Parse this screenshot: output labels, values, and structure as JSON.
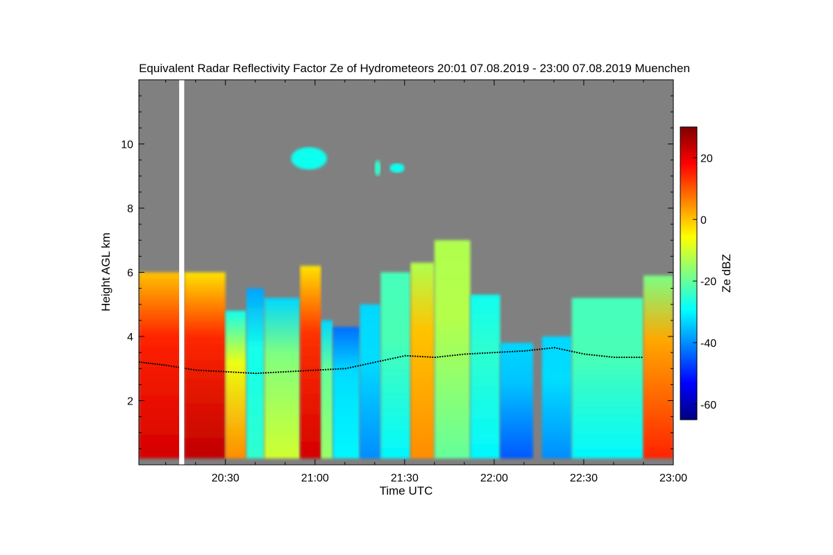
{
  "chart_data": {
    "type": "heatmap",
    "title": "Equivalent Radar Reflectivity Factor Ze of Hydrometeors   20:01 07.08.2019 - 23:00 07.08.2019 Muenchen",
    "xlabel": "Time UTC",
    "ylabel": "Height AGL km",
    "x_range_minutes_utc": [
      1201,
      1380
    ],
    "x_ticks": [
      {
        "value": 1230,
        "label": "20:30"
      },
      {
        "value": 1260,
        "label": "21:00"
      },
      {
        "value": 1290,
        "label": "21:30"
      },
      {
        "value": 1320,
        "label": "22:00"
      },
      {
        "value": 1350,
        "label": "22:30"
      },
      {
        "value": 1380,
        "label": "23:00"
      }
    ],
    "ylim": [
      0,
      12
    ],
    "y_ticks": [
      2,
      4,
      6,
      8,
      10
    ],
    "grid": false,
    "background_color": "#808080",
    "colorbar": {
      "label": "Ze dBZ",
      "range": [
        -65,
        30
      ],
      "ticks": [
        -60,
        -40,
        -20,
        0,
        20
      ],
      "colors": [
        "#00007f",
        "#0000ff",
        "#0080ff",
        "#00ffff",
        "#80ff80",
        "#ffff00",
        "#ff8000",
        "#ff0000",
        "#7f0000"
      ]
    },
    "data_gap": {
      "start": 1214.5,
      "end": 1216.2
    },
    "echo_columns": [
      {
        "t0": 1201,
        "t1": 1216,
        "top": 6.0,
        "dbz_low": 22,
        "dbz_high": 8
      },
      {
        "t0": 1216.2,
        "t1": 1230,
        "top": 6.0,
        "dbz_low": 24,
        "dbz_high": 5
      },
      {
        "t0": 1230,
        "t1": 1237,
        "top": 4.8,
        "dbz_low": 5,
        "dbz_high": -20
      },
      {
        "t0": 1237,
        "t1": 1243,
        "top": 5.5,
        "dbz_low": -25,
        "dbz_high": -30
      },
      {
        "t0": 1243,
        "t1": 1255,
        "top": 5.2,
        "dbz_low": -10,
        "dbz_high": -25
      },
      {
        "t0": 1255,
        "t1": 1262,
        "top": 6.2,
        "dbz_low": 22,
        "dbz_high": 5
      },
      {
        "t0": 1262,
        "t1": 1266,
        "top": 4.5,
        "dbz_low": -15,
        "dbz_high": -25
      },
      {
        "t0": 1266,
        "t1": 1275,
        "top": 4.3,
        "dbz_low": -30,
        "dbz_high": -35
      },
      {
        "t0": 1275,
        "t1": 1282,
        "top": 5.0,
        "dbz_low": -40,
        "dbz_high": -25
      },
      {
        "t0": 1282,
        "t1": 1292,
        "top": 6.0,
        "dbz_low": -30,
        "dbz_high": -15
      },
      {
        "t0": 1292,
        "t1": 1300,
        "top": 6.3,
        "dbz_low": 5,
        "dbz_high": -5
      },
      {
        "t0": 1300,
        "t1": 1312,
        "top": 7.0,
        "dbz_low": -20,
        "dbz_high": -5
      },
      {
        "t0": 1312,
        "t1": 1322,
        "top": 5.3,
        "dbz_low": -30,
        "dbz_high": -20
      },
      {
        "t0": 1322,
        "t1": 1333,
        "top": 3.8,
        "dbz_low": -45,
        "dbz_high": -25
      },
      {
        "t0": 1336,
        "t1": 1346,
        "top": 4.0,
        "dbz_low": -40,
        "dbz_high": -25
      },
      {
        "t0": 1346,
        "t1": 1370,
        "top": 5.2,
        "dbz_low": -30,
        "dbz_high": -15
      },
      {
        "t0": 1370,
        "t1": 1380,
        "top": 5.9,
        "dbz_low": 15,
        "dbz_high": -10
      }
    ],
    "melting_layer_km": [
      {
        "t": 1201,
        "h": 3.2
      },
      {
        "t": 1210,
        "h": 3.1
      },
      {
        "t": 1220,
        "h": 2.95
      },
      {
        "t": 1230,
        "h": 2.9
      },
      {
        "t": 1240,
        "h": 2.85
      },
      {
        "t": 1250,
        "h": 2.9
      },
      {
        "t": 1260,
        "h": 2.95
      },
      {
        "t": 1270,
        "h": 3.0
      },
      {
        "t": 1280,
        "h": 3.2
      },
      {
        "t": 1290,
        "h": 3.4
      },
      {
        "t": 1300,
        "h": 3.35
      },
      {
        "t": 1310,
        "h": 3.45
      },
      {
        "t": 1320,
        "h": 3.5
      },
      {
        "t": 1330,
        "h": 3.55
      },
      {
        "t": 1340,
        "h": 3.65
      },
      {
        "t": 1350,
        "h": 3.45
      },
      {
        "t": 1360,
        "h": 3.35
      },
      {
        "t": 1370,
        "h": 3.35
      }
    ],
    "upper_echoes": [
      {
        "t0": 1252,
        "t1": 1264,
        "h0": 9.2,
        "h1": 9.9,
        "dbz": -28
      },
      {
        "t0": 1280,
        "t1": 1282,
        "h0": 9.0,
        "h1": 9.5,
        "dbz": -25
      },
      {
        "t0": 1285,
        "t1": 1290,
        "h0": 9.1,
        "h1": 9.4,
        "dbz": -28
      }
    ]
  }
}
